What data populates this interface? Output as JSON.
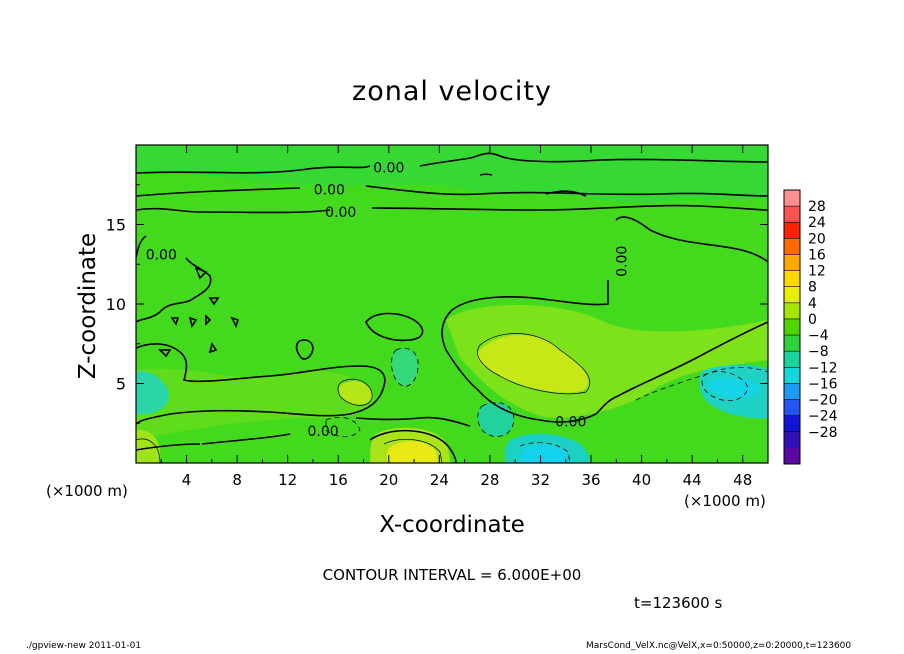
{
  "footer": {
    "left": "./gpview-new 2011-01-01",
    "right": "MarsCond_VelX.nc@VelX,x=0:50000,z=0:20000,t=123600"
  },
  "chart_data": {
    "type": "contour",
    "title": "zonal velocity",
    "xlabel": "X-coordinate",
    "ylabel": "Z-coordinate",
    "x_unit_label": "(×1000 m)",
    "x_ticks": [
      4,
      8,
      12,
      16,
      20,
      24,
      28,
      32,
      36,
      40,
      44,
      48
    ],
    "y_ticks": [
      5,
      10,
      15
    ],
    "xlim": [
      0,
      50
    ],
    "ylim": [
      0,
      20
    ],
    "contour_interval": "CONTOUR INTERVAL = 6.000E+00",
    "time_label": "t=123600 s",
    "zero_contour_labels": [
      {
        "label": "0.00",
        "x": 20,
        "z": 18.6
      },
      {
        "label": "0.00",
        "x": 15.3,
        "z": 17.2
      },
      {
        "label": "0.00",
        "x": 16.2,
        "z": 15.8
      },
      {
        "label": "0.00",
        "x": 2,
        "z": 13.1
      },
      {
        "label": "0.00",
        "x": 38.8,
        "z": 13.0
      },
      {
        "label": "0.00",
        "x": 14.8,
        "z": 2.0
      },
      {
        "label": "0.00",
        "x": 34.4,
        "z": 2.6
      }
    ],
    "colorbar": {
      "labels": [
        "28",
        "24",
        "20",
        "16",
        "12",
        "8",
        "4",
        "0",
        "−4",
        "−8",
        "−12",
        "−16",
        "−20",
        "−24",
        "−28"
      ],
      "colors": [
        "#ff8f8f",
        "#ff5252",
        "#ff2200",
        "#ff6a00",
        "#ffa800",
        "#ffd800",
        "#e8ee00",
        "#a6e600",
        "#4fd400",
        "#2ed23c",
        "#1ad4a0",
        "#10d8d8",
        "#1a9af2",
        "#2454f2",
        "#1414d8",
        "#3010b8",
        "#5a0aa2"
      ]
    }
  }
}
